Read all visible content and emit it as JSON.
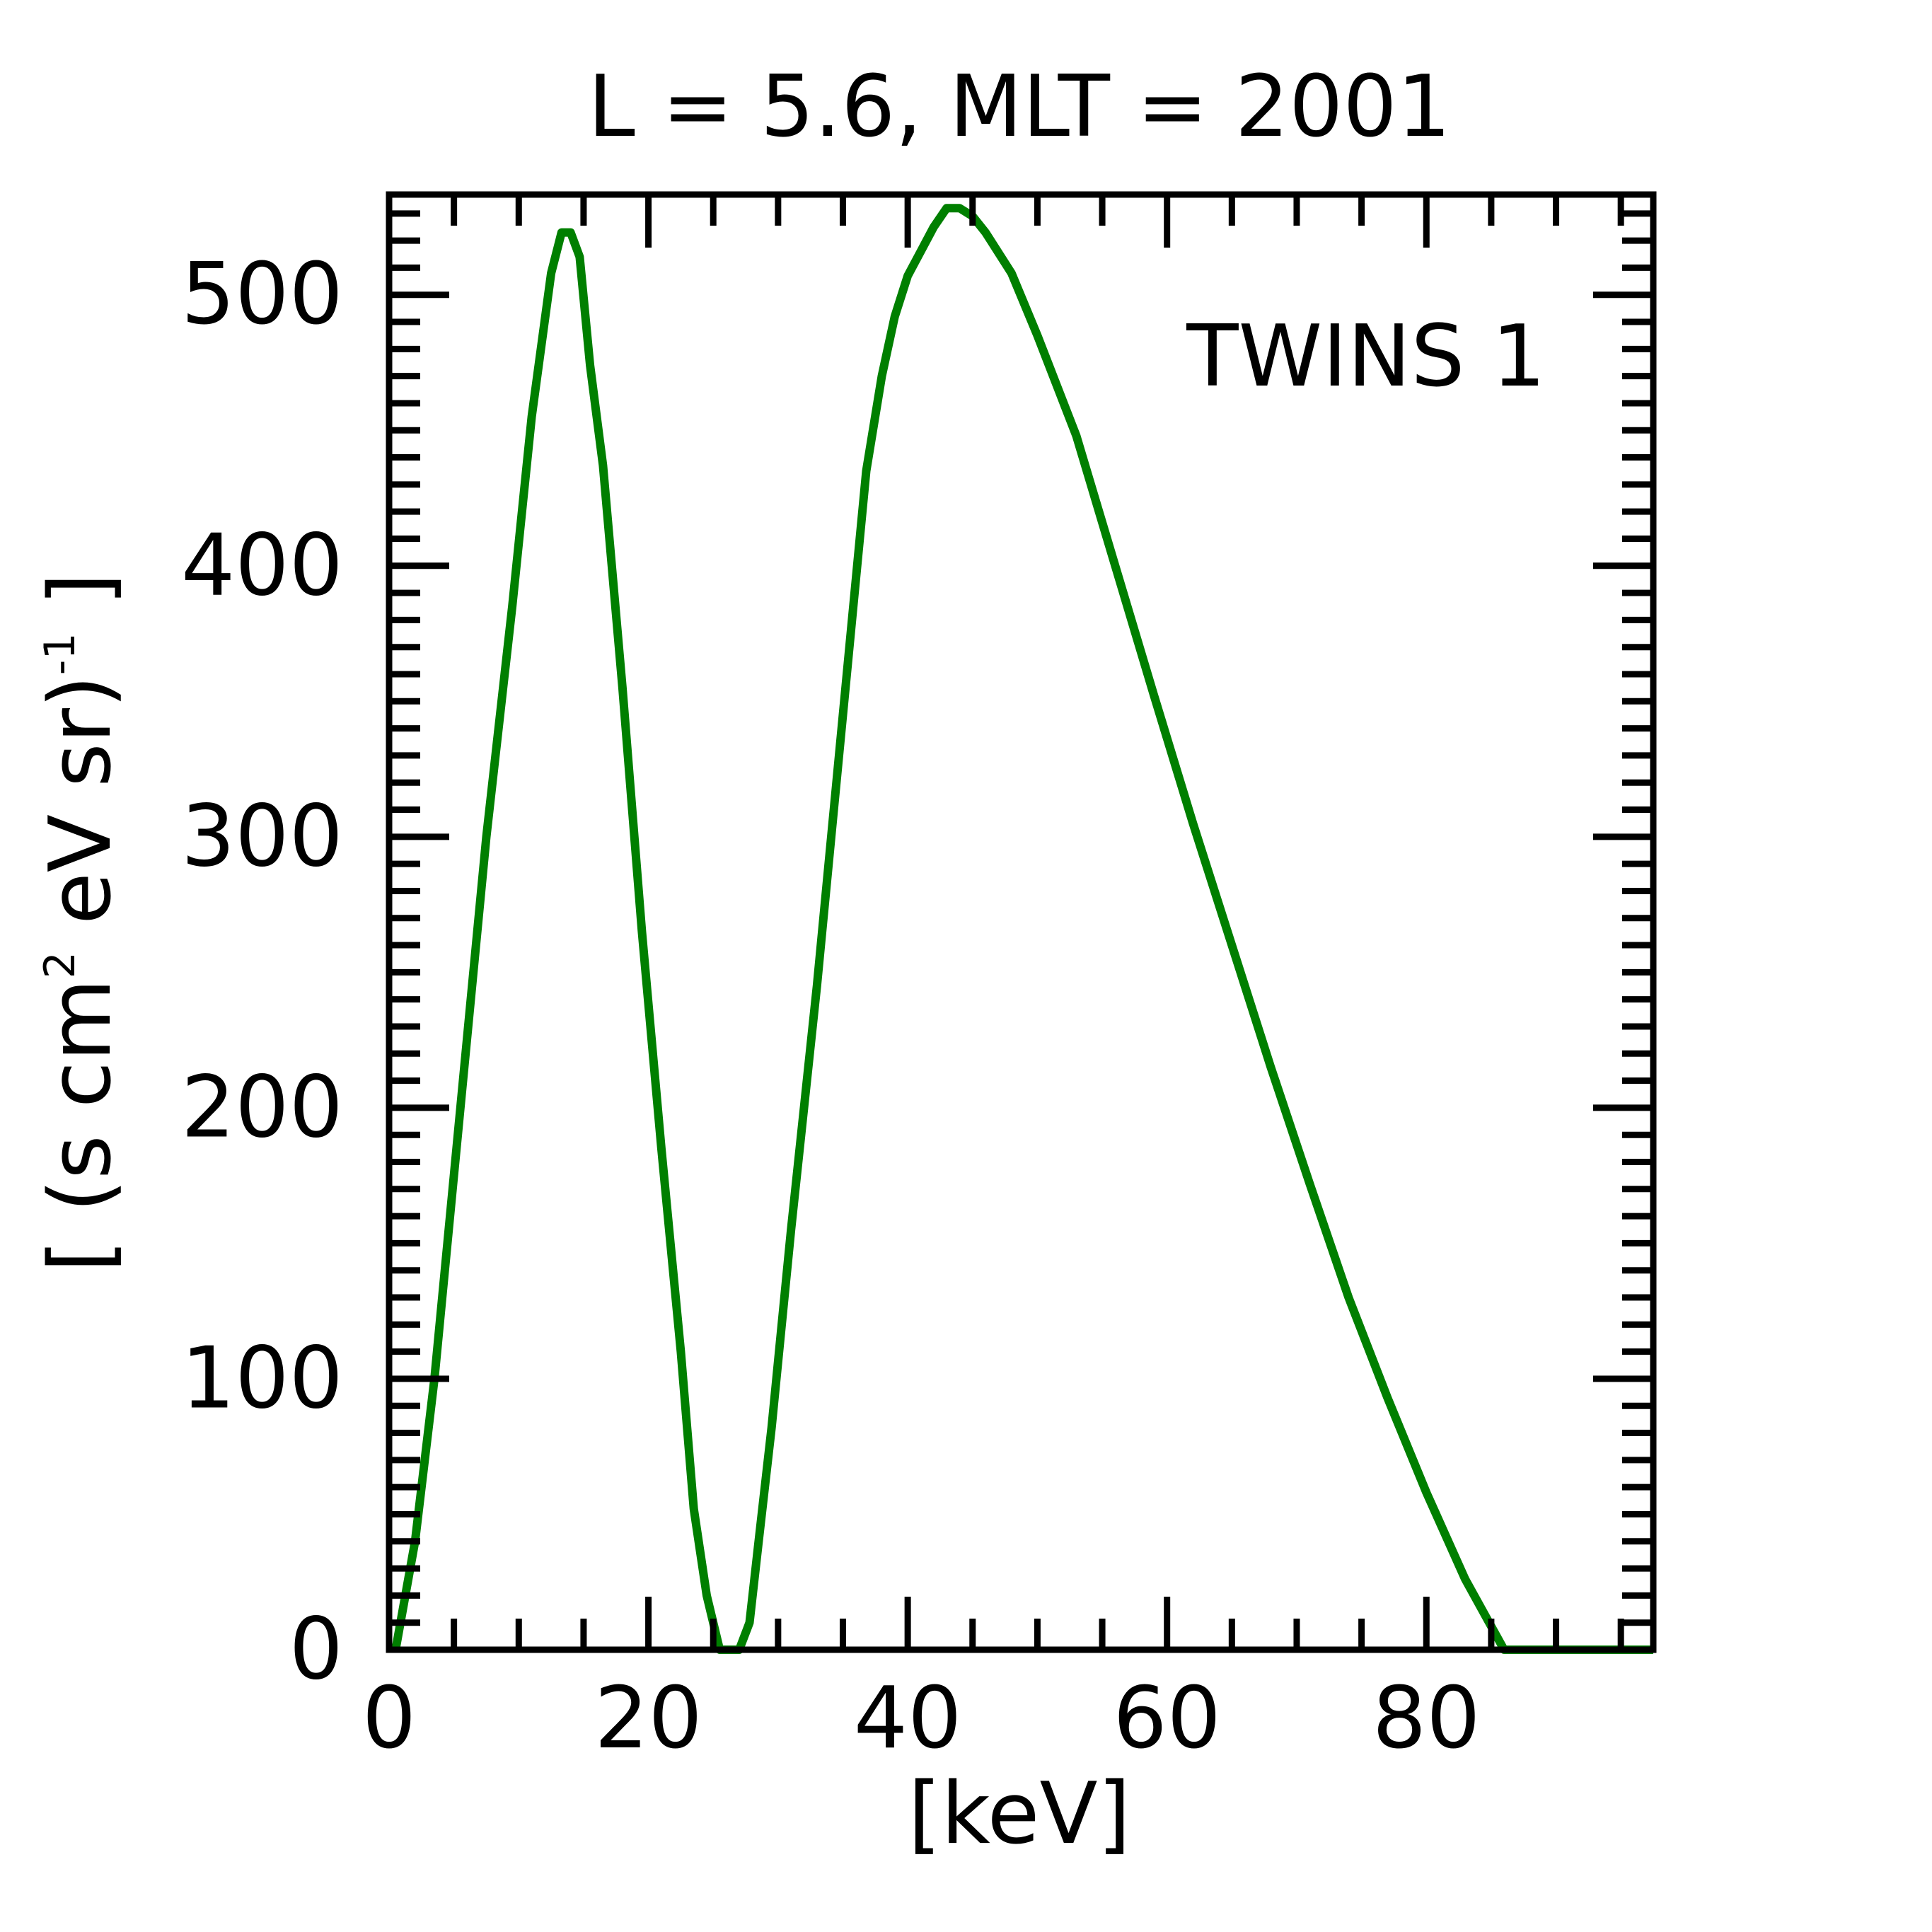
{
  "chart_data": {
    "type": "line",
    "title": "L =  5.6, MLT = 2001",
    "xlabel": "[keV]",
    "ylabel_parts": {
      "open": "[ (s cm",
      "sup1": "2",
      "mid": " eV sr)",
      "sup2": "-1",
      "close": " ]"
    },
    "xlim": [
      0,
      97.5
    ],
    "ylim": [
      0,
      537
    ],
    "xticks": [
      "0",
      "20",
      "40",
      "60",
      "80"
    ],
    "xtick_values": [
      0,
      20,
      40,
      60,
      80
    ],
    "yticks": [
      "0",
      "100",
      "200",
      "300",
      "400",
      "500"
    ],
    "ytick_values": [
      0,
      100,
      200,
      300,
      400,
      500
    ],
    "grid": false,
    "legend_position": "top-right",
    "series": [
      {
        "name": "TWINS 1",
        "color": "#007f00",
        "points": [
          [
            0.5,
            0
          ],
          [
            2,
            40
          ],
          [
            3.5,
            100
          ],
          [
            5.5,
            200
          ],
          [
            7.5,
            300
          ],
          [
            9.5,
            385
          ],
          [
            11,
            455
          ],
          [
            12.5,
            508
          ],
          [
            13.3,
            523
          ],
          [
            14.0,
            523
          ],
          [
            14.7,
            514
          ],
          [
            15.5,
            474
          ],
          [
            16.5,
            437
          ],
          [
            18,
            355
          ],
          [
            19.5,
            265
          ],
          [
            21,
            185
          ],
          [
            22.5,
            110
          ],
          [
            23.5,
            52
          ],
          [
            24.5,
            20
          ],
          [
            25.5,
            0
          ],
          [
            27,
            0
          ],
          [
            27.8,
            10
          ],
          [
            28.5,
            40
          ],
          [
            29.5,
            82
          ],
          [
            31,
            155
          ],
          [
            33,
            245
          ],
          [
            35,
            345
          ],
          [
            36.8,
            435
          ],
          [
            38,
            470
          ],
          [
            39,
            492
          ],
          [
            40,
            507
          ],
          [
            41,
            516
          ],
          [
            42,
            525
          ],
          [
            43,
            532
          ],
          [
            44,
            532
          ],
          [
            45,
            529
          ],
          [
            46,
            523
          ],
          [
            48,
            508
          ],
          [
            50,
            485
          ],
          [
            53,
            448
          ],
          [
            56,
            400
          ],
          [
            59,
            352
          ],
          [
            62,
            305
          ],
          [
            65,
            260
          ],
          [
            68,
            215
          ],
          [
            71,
            172
          ],
          [
            74,
            130
          ],
          [
            77,
            93
          ],
          [
            80,
            58
          ],
          [
            83,
            26
          ],
          [
            86,
            0
          ],
          [
            88,
            0
          ],
          [
            90,
            0
          ],
          [
            92,
            0
          ],
          [
            94,
            0
          ],
          [
            96,
            0
          ],
          [
            97.5,
            0
          ]
        ]
      }
    ]
  }
}
